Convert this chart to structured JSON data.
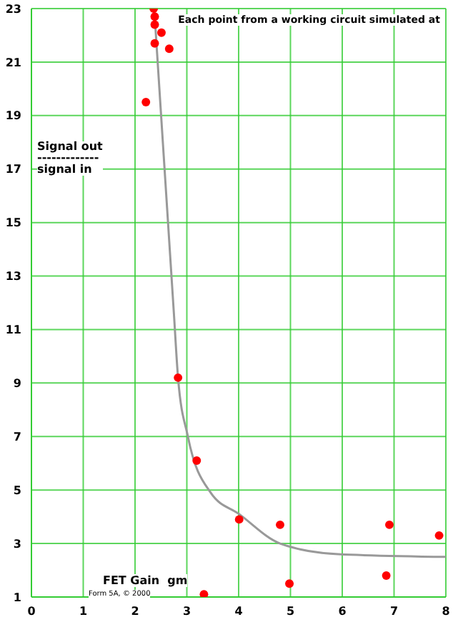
{
  "chart_data": {
    "type": "scatter",
    "title": "Each point from a working circuit simulated at",
    "xlabel": "FET Gain  gm",
    "ylabel": "Signal out\n-------------\nsignal in",
    "annotations": [
      "Form 5A, © 2000"
    ],
    "series": [
      {
        "color": "#ff0000",
        "x": [
          2.36,
          2.38,
          2.38,
          2.51,
          2.38,
          2.66,
          2.21,
          2.83,
          3.19,
          4.01,
          4.8,
          6.91,
          7.87,
          6.85,
          4.98,
          3.33
        ],
        "values": [
          23.0,
          22.7,
          22.4,
          22.1,
          21.7,
          21.5,
          19.5,
          9.2,
          6.1,
          3.9,
          3.7,
          3.7,
          3.3,
          1.8,
          1.5,
          1.1
        ]
      },
      {
        "type": "line",
        "marker": "none",
        "color": "#999999",
        "x": [
          2.37,
          2.75,
          2.83,
          3.02,
          3.46,
          4.01,
          4.8,
          5.92,
          8.0
        ],
        "values": [
          23.0,
          11.6,
          9.2,
          7.0,
          4.9,
          4.1,
          3.0,
          2.6,
          2.5
        ]
      }
    ],
    "xlim": [
      0,
      8
    ],
    "xticks": [
      0,
      1,
      2,
      3,
      4,
      5,
      6,
      7,
      8
    ],
    "ylim": [
      1,
      23
    ],
    "yticks": [
      1,
      3,
      5,
      7,
      9,
      11,
      13,
      15,
      17,
      19,
      21,
      23
    ],
    "grid": true,
    "marker": "circle",
    "line_style": "solid"
  }
}
